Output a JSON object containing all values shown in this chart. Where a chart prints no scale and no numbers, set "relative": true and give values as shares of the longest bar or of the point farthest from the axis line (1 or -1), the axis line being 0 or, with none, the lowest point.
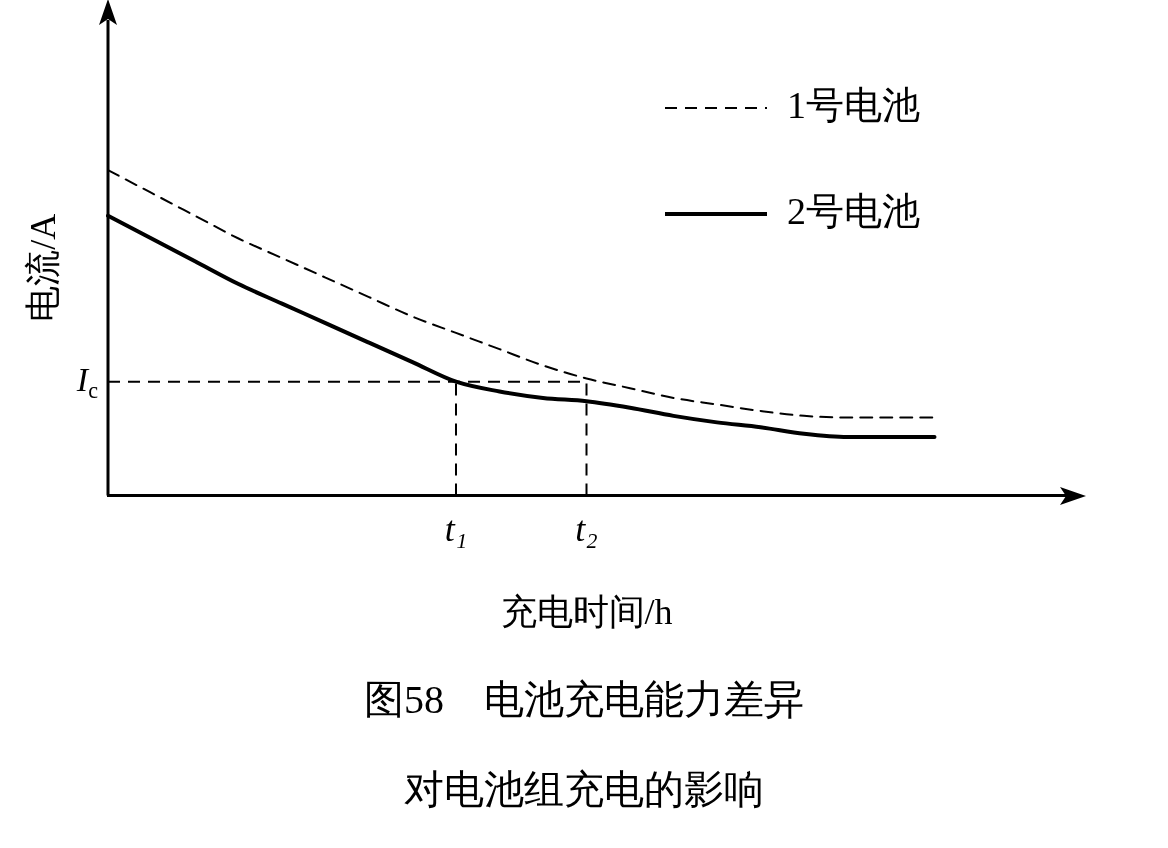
{
  "chart_data": {
    "type": "line",
    "relative": true,
    "xlabel": "充电时间/h",
    "ylabel": "电流/A",
    "title": "图58　电池充电能力差异",
    "subtitle": "对电池组充电的影响",
    "legend": "top right",
    "grid": false,
    "marker": "none",
    "categories": [
      null,
      null,
      null,
      null,
      null,
      null,
      null,
      null,
      "t₁",
      null,
      null,
      "t₂",
      null,
      null,
      null,
      null,
      null,
      null,
      null,
      null,
      null,
      null,
      null
    ],
    "series": [
      {
        "name": "1号电池",
        "color": "#000000",
        "line_style": "dashed",
        "values": [
          1,
          0.93,
          0.86,
          0.79,
          0.73,
          0.67,
          0.61,
          0.55,
          0.5,
          0.45,
          0.4,
          0.36,
          0.33,
          0.3,
          0.28,
          0.26,
          0.245,
          0.24,
          0.24,
          0.24,
          null,
          null,
          null
        ]
      },
      {
        "name": "2号电池",
        "color": "#000000",
        "line_style": "solid",
        "values": [
          0.86,
          0.79,
          0.72,
          0.65,
          0.59,
          0.53,
          0.47,
          0.41,
          0.35,
          0.32,
          0.3,
          0.29,
          0.27,
          0.245,
          0.225,
          0.21,
          0.19,
          0.18,
          0.18,
          0.18,
          null,
          null,
          null
        ]
      }
    ],
    "ref_lines": [
      {
        "axis": "y",
        "value": 0.35,
        "label": "I$_{c}$",
        "line_style": "dashed"
      },
      {
        "axis": "x",
        "value": "t₁",
        "line_style": "dashed"
      },
      {
        "axis": "x",
        "value": "t₂",
        "line_style": "dashed"
      }
    ]
  }
}
